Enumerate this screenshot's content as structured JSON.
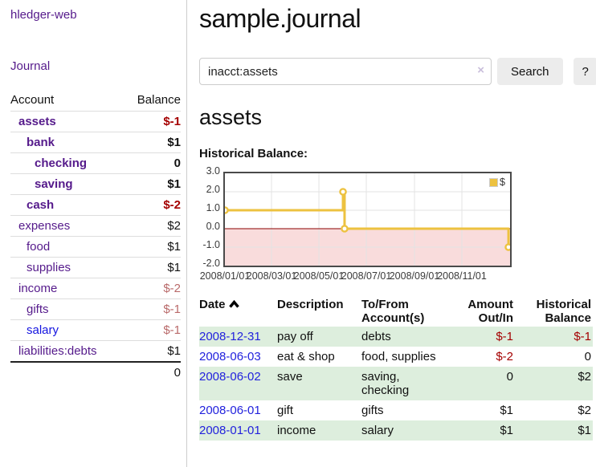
{
  "sidebar": {
    "brand": "hledger-web",
    "nav_journal": "Journal",
    "table": {
      "headers": {
        "account": "Account",
        "balance": "Balance"
      },
      "rows": [
        {
          "account": "assets",
          "balance": "$-1",
          "level": 1,
          "bold": true,
          "balance_class": "neg-strong",
          "blue": false
        },
        {
          "account": "bank",
          "balance": "$1",
          "level": 2,
          "bold": true,
          "balance_class": "",
          "blue": false
        },
        {
          "account": "checking",
          "balance": "0",
          "level": 3,
          "bold": true,
          "balance_class": "",
          "blue": false
        },
        {
          "account": "saving",
          "balance": "$1",
          "level": 3,
          "bold": true,
          "balance_class": "",
          "blue": false
        },
        {
          "account": "cash",
          "balance": "$-2",
          "level": 2,
          "bold": true,
          "balance_class": "neg-strong",
          "blue": false
        },
        {
          "account": "expenses",
          "balance": "$2",
          "level": 1,
          "bold": false,
          "balance_class": "",
          "blue": false
        },
        {
          "account": "food",
          "balance": "$1",
          "level": 2,
          "bold": false,
          "balance_class": "",
          "blue": false
        },
        {
          "account": "supplies",
          "balance": "$1",
          "level": 2,
          "bold": false,
          "balance_class": "",
          "blue": false
        },
        {
          "account": "income",
          "balance": "$-2",
          "level": 1,
          "bold": false,
          "balance_class": "neg-soft",
          "blue": false
        },
        {
          "account": "gifts",
          "balance": "$-1",
          "level": 2,
          "bold": false,
          "balance_class": "neg-soft",
          "blue": false
        },
        {
          "account": "salary",
          "balance": "$-1",
          "level": 2,
          "bold": false,
          "balance_class": "neg-soft",
          "blue": true
        },
        {
          "account": "liabilities:debts",
          "balance": "$1",
          "level": 1,
          "bold": false,
          "balance_class": "",
          "blue": false
        }
      ],
      "total": "0"
    }
  },
  "header": {
    "title": "sample.journal"
  },
  "search": {
    "query": "inacct:assets",
    "clear_icon": "×",
    "button_label": "Search",
    "help_label": "?"
  },
  "account_page": {
    "title": "assets",
    "chart_label": "Historical Balance:"
  },
  "chart_data": {
    "type": "line",
    "step": true,
    "title": "Historical Balance",
    "legend": {
      "label": "$",
      "position": "top-right"
    },
    "xdomain": [
      "2008-01-01",
      "2009-01-02"
    ],
    "ylim": [
      -2.0,
      3.0
    ],
    "yticks": [
      3.0,
      2.0,
      1.0,
      0.0,
      -1.0,
      -2.0
    ],
    "ygrid": [
      2.0,
      1.0,
      -1.0
    ],
    "xticks": [
      {
        "label": "2008/01/01",
        "date": "2008-01-01"
      },
      {
        "label": "2008/03/01",
        "date": "2008-03-01"
      },
      {
        "label": "2008/05/01",
        "date": "2008-05-01"
      },
      {
        "label": "2008/07/01",
        "date": "2008-07-01"
      },
      {
        "label": "2008/09/01",
        "date": "2008-09-01"
      },
      {
        "label": "2008/11/01",
        "date": "2008-11-01"
      }
    ],
    "series": [
      {
        "name": "$",
        "points": [
          {
            "date": "2008-01-01",
            "value": 1
          },
          {
            "date": "2008-06-01",
            "value": 2
          },
          {
            "date": "2008-06-03",
            "value": 0
          },
          {
            "date": "2008-12-31",
            "value": -1
          }
        ]
      }
    ],
    "colors": {
      "line": "#edc240",
      "marker_fill": "#ffffff",
      "negative_fill": "#f9dcdc",
      "zero_line": "#8b0000",
      "grid": "#e3e3e3"
    }
  },
  "register": {
    "headers": {
      "date": "Date",
      "description": "Description",
      "accounts_line1": "To/From",
      "accounts_line2": "Account(s)",
      "amount_line1": "Amount",
      "amount_line2": "Out/In",
      "balance_line1": "Historical",
      "balance_line2": "Balance"
    },
    "rows": [
      {
        "date": "2008-12-31",
        "description": "pay off",
        "accounts": "debts",
        "amount": "$-1",
        "amount_neg": true,
        "balance": "$-1",
        "balance_neg": true,
        "shaded": true
      },
      {
        "date": "2008-06-03",
        "description": "eat & shop",
        "accounts": "food, supplies",
        "amount": "$-2",
        "amount_neg": true,
        "balance": "0",
        "balance_neg": false,
        "shaded": false
      },
      {
        "date": "2008-06-02",
        "description": "save",
        "accounts": "saving, checking",
        "amount": "0",
        "amount_neg": false,
        "balance": "$2",
        "balance_neg": false,
        "shaded": true
      },
      {
        "date": "2008-06-01",
        "description": "gift",
        "accounts": "gifts",
        "amount": "$1",
        "amount_neg": false,
        "balance": "$2",
        "balance_neg": false,
        "shaded": false
      },
      {
        "date": "2008-01-01",
        "description": "income",
        "accounts": "salary",
        "amount": "$1",
        "amount_neg": false,
        "balance": "$1",
        "balance_neg": false,
        "shaded": true
      }
    ]
  }
}
